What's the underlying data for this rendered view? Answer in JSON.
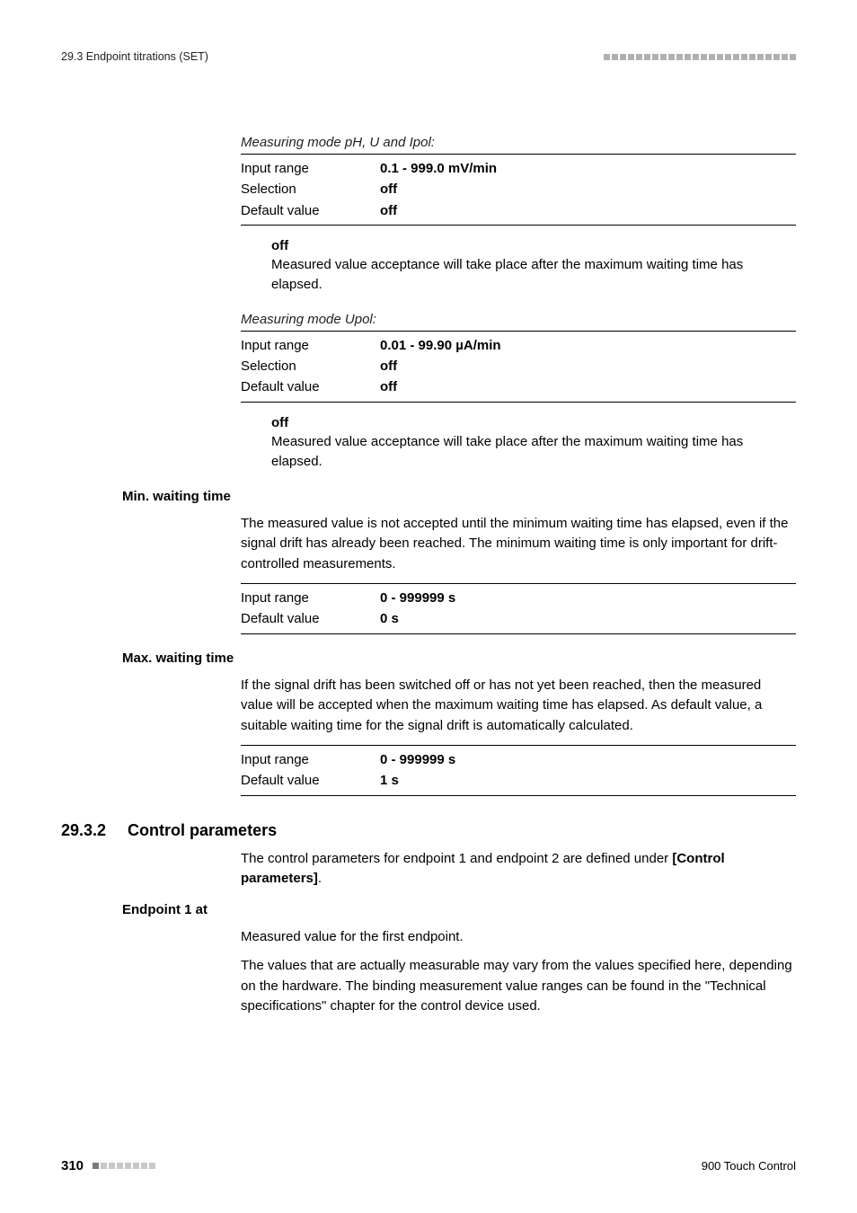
{
  "header": {
    "section": "29.3 Endpoint titrations (SET)",
    "square_count": 24,
    "square_color": "#b0b0b0"
  },
  "measuring_mode_1": {
    "label": "Measuring mode pH, U and Ipol:",
    "rows": [
      {
        "key": "Input range",
        "val": "0.1 - 999.0 mV/min"
      },
      {
        "key": "Selection",
        "val": "off"
      },
      {
        "key": "Default value",
        "val": "off"
      }
    ],
    "off_label": "off",
    "off_desc": "Measured value acceptance will take place after the maximum waiting time has elapsed."
  },
  "measuring_mode_2": {
    "label": "Measuring mode Upol:",
    "rows": [
      {
        "key": "Input range",
        "val": "0.01 - 99.90 µA/min"
      },
      {
        "key": "Selection",
        "val": "off"
      },
      {
        "key": "Default value",
        "val": "off"
      }
    ],
    "off_label": "off",
    "off_desc": "Measured value acceptance will take place after the maximum waiting time has elapsed."
  },
  "min_wait": {
    "label": "Min. waiting time",
    "para": "The measured value is not accepted until the minimum waiting time has elapsed, even if the signal drift has already been reached. The minimum waiting time is only important for drift-controlled measurements.",
    "rows": [
      {
        "key": "Input range",
        "val": "0 - 999999 s"
      },
      {
        "key": "Default value",
        "val": "0 s"
      }
    ]
  },
  "max_wait": {
    "label": "Max. waiting time",
    "para": "If the signal drift has been switched off or has not yet been reached, then the measured value will be accepted when the maximum waiting time has elapsed. As default value, a suitable waiting time for the signal drift is automatically calculated.",
    "rows": [
      {
        "key": "Input range",
        "val": "0 - 999999 s"
      },
      {
        "key": "Default value",
        "val": "1 s"
      }
    ]
  },
  "section": {
    "num": "29.3.2",
    "title": "Control parameters",
    "intro_pre": "The control parameters for endpoint 1 and endpoint 2 are defined under ",
    "intro_bold": "[Control parameters]",
    "intro_post": "."
  },
  "endpoint1": {
    "label": "Endpoint 1 at",
    "p1": "Measured value for the first endpoint.",
    "p2": "The values that are actually measurable may vary from the values specified here, depending on the hardware. The binding measurement value ranges can be found in the \"Technical specifications\" chapter for the control device used."
  },
  "footer": {
    "page": "310",
    "square_count": 8,
    "square_color_first": "#7a7a7a",
    "square_color_rest": "#c8c8c8",
    "product": "900 Touch Control"
  }
}
